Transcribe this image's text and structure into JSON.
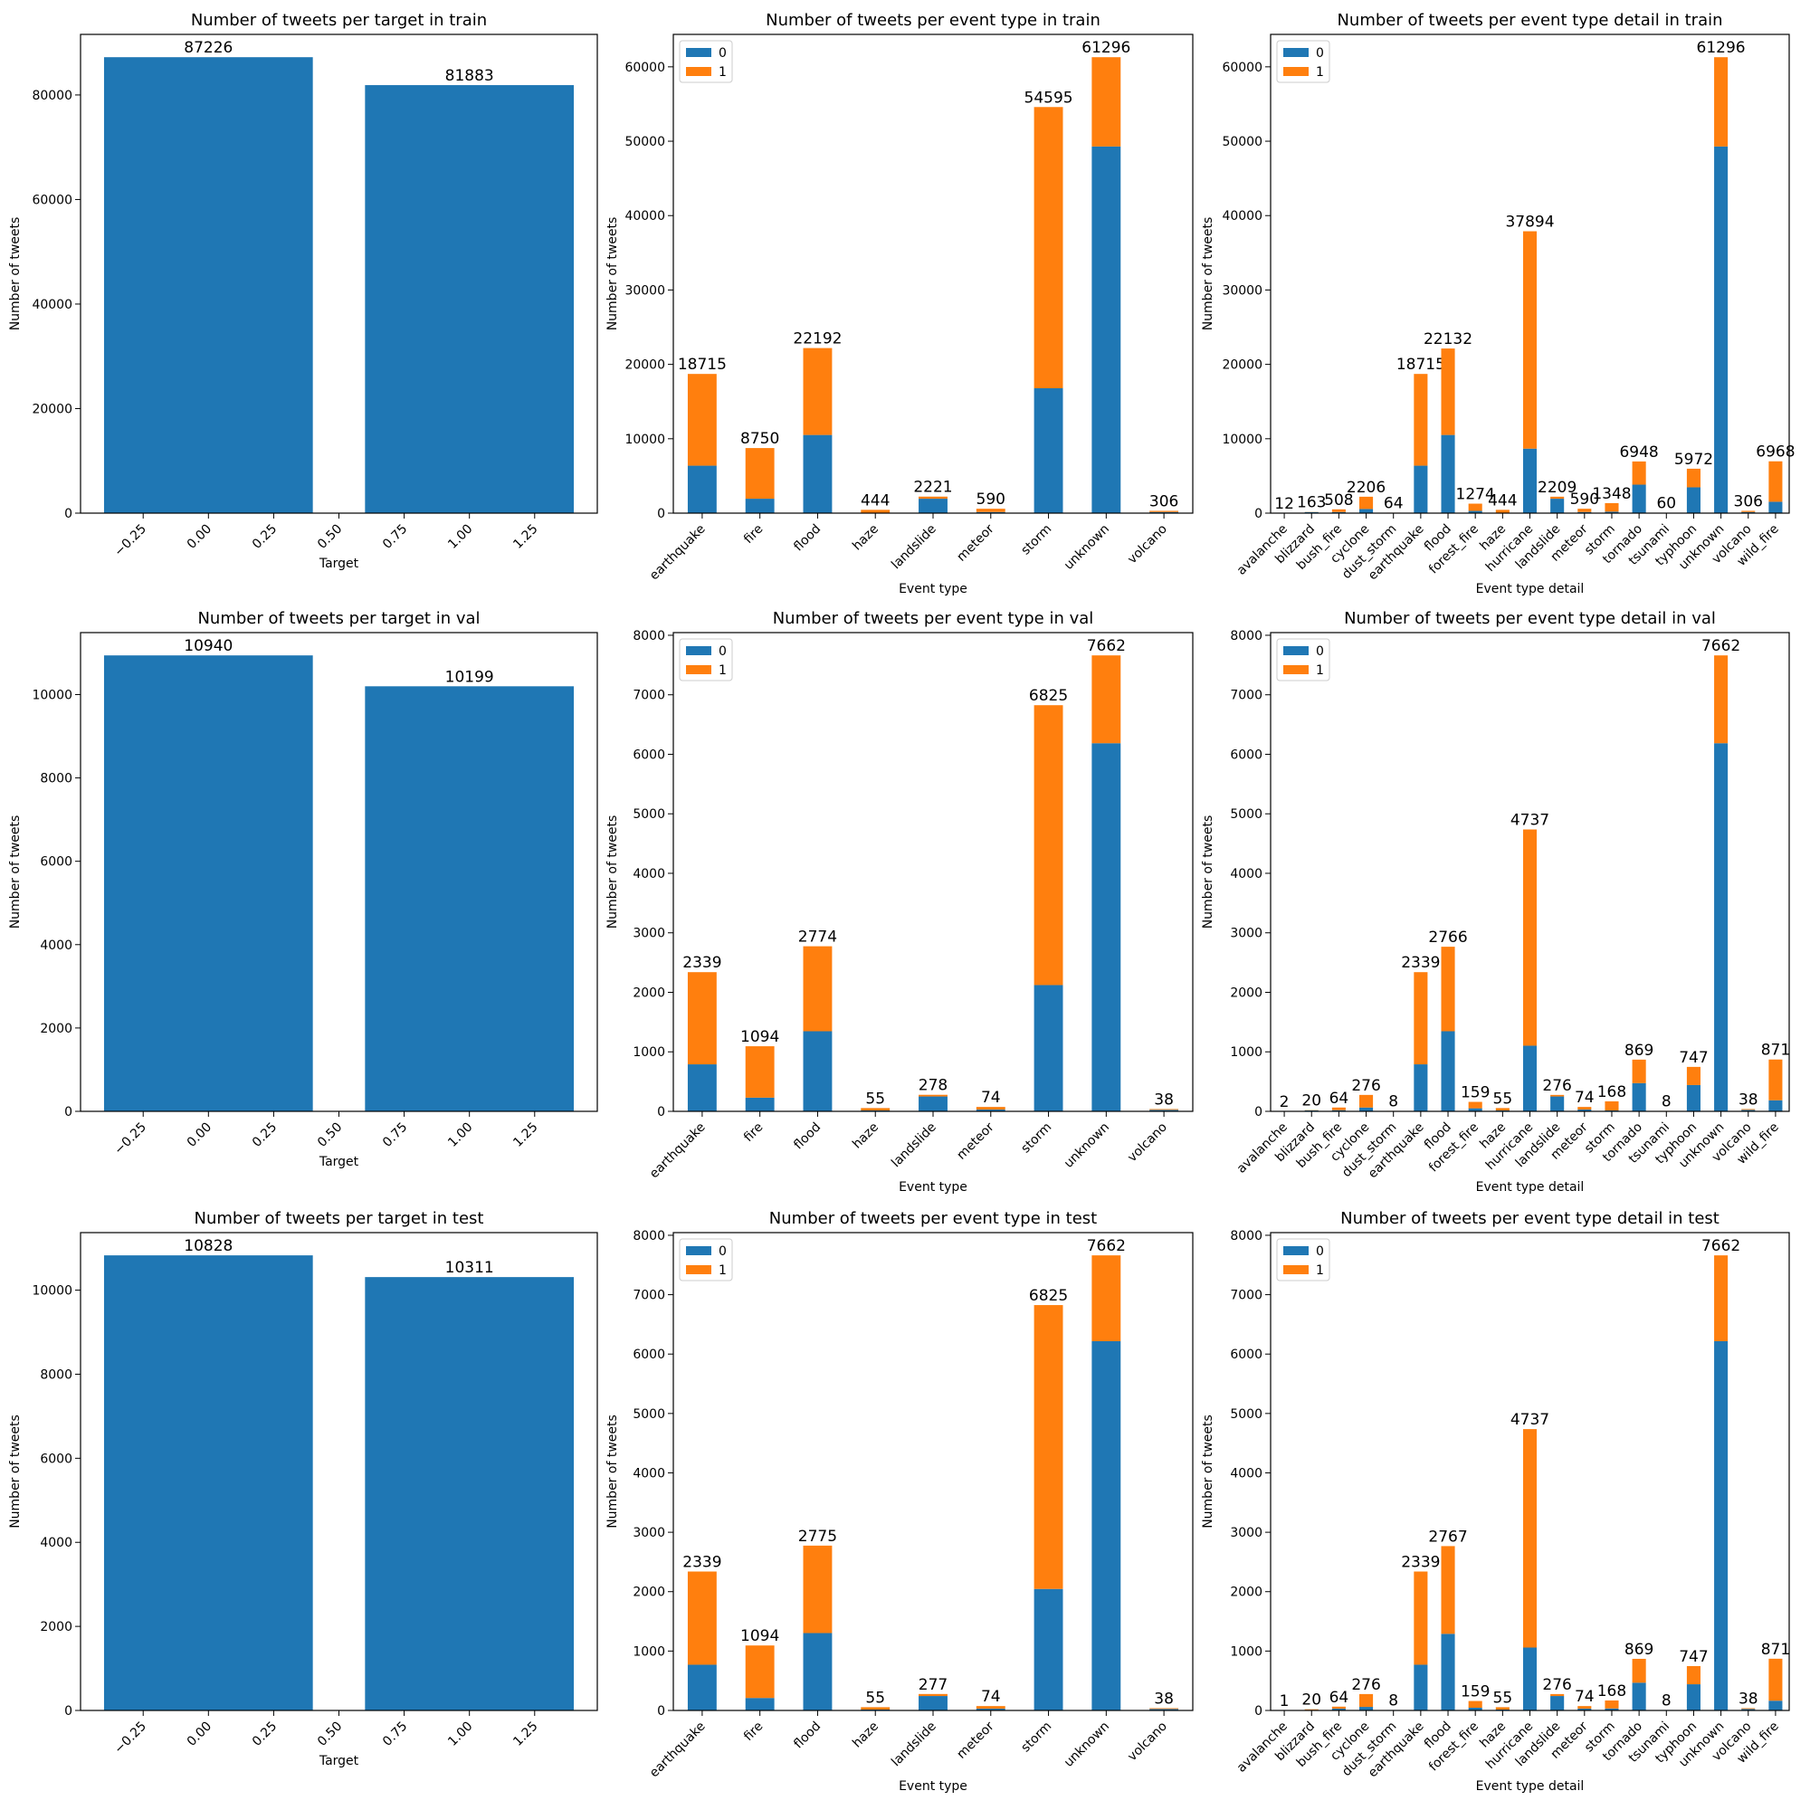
{
  "colors": {
    "class_0": "#1f77b4",
    "class_1": "#ff7f0e",
    "single": "#1f77b4"
  },
  "chart_data": [
    {
      "type": "bar",
      "title": "Number of tweets per target in train",
      "xlabel": "Target",
      "ylabel": "Number of tweets",
      "x": [
        0,
        1
      ],
      "values": [
        87226,
        81883
      ],
      "bar_labels": [
        "87226",
        "81883"
      ],
      "xlim": [
        -0.49,
        1.49
      ],
      "ylim": [
        0,
        91587
      ],
      "xticks": [
        -0.25,
        0,
        0.25,
        0.5,
        0.75,
        1,
        1.25
      ],
      "xtick_labels": [
        "−0.25",
        "0.00",
        "0.25",
        "0.50",
        "0.75",
        "1.00",
        "1.25"
      ],
      "yticks": [
        0,
        20000,
        40000,
        60000,
        80000
      ],
      "ytick_labels": [
        "0",
        "20000",
        "40000",
        "60000",
        "80000"
      ]
    },
    {
      "type": "bar",
      "stacked": true,
      "title": "Number of tweets per event type in train",
      "xlabel": "Event type",
      "ylabel": "Number of tweets",
      "categories": [
        "earthquake",
        "fire",
        "flood",
        "haze",
        "landslide",
        "meteor",
        "storm",
        "unknown",
        "volcano"
      ],
      "series": [
        {
          "name": "0",
          "values": [
            6380,
            1940,
            10510,
            50,
            1940,
            150,
            16790,
            49290,
            150
          ]
        },
        {
          "name": "1",
          "values": [
            12335,
            6810,
            11682,
            394,
            281,
            440,
            37805,
            12006,
            156
          ]
        }
      ],
      "bar_labels": [
        "18715",
        "8750",
        "22192",
        "444",
        "2221",
        "590",
        "54595",
        "61296",
        "306"
      ],
      "ylim": [
        0,
        64361
      ],
      "yticks": [
        0,
        10000,
        20000,
        30000,
        40000,
        50000,
        60000
      ],
      "ytick_labels": [
        "0",
        "10000",
        "20000",
        "30000",
        "40000",
        "50000",
        "60000"
      ],
      "legend": {
        "placement": "top-left",
        "entries": [
          "0",
          "1"
        ]
      }
    },
    {
      "type": "bar",
      "stacked": true,
      "title": "Number of tweets per event type detail in train",
      "xlabel": "Event type detail",
      "ylabel": "Number of tweets",
      "categories": [
        "avalanche",
        "blizzard",
        "bush_fire",
        "cyclone",
        "dust_storm",
        "earthquake",
        "flood",
        "forest_fire",
        "haze",
        "hurricane",
        "landslide",
        "meteor",
        "storm",
        "tornado",
        "tsunami",
        "typhoon",
        "unknown",
        "volcano",
        "wild_fire"
      ],
      "series": [
        {
          "name": "0",
          "values": [
            6,
            140,
            150,
            560,
            30,
            6380,
            10510,
            300,
            50,
            8670,
            1940,
            150,
            200,
            3830,
            20,
            3470,
            49290,
            150,
            1530
          ]
        },
        {
          "name": "1",
          "values": [
            6,
            23,
            358,
            1646,
            34,
            12335,
            11622,
            974,
            394,
            29224,
            269,
            440,
            1148,
            3118,
            40,
            2502,
            12006,
            156,
            5438
          ]
        }
      ],
      "bar_labels": [
        "12",
        "163",
        "508",
        "2206",
        "64",
        "18715",
        "22132",
        "1274",
        "444",
        "37894",
        "2209",
        "590",
        "1348",
        "6948",
        "60",
        "5972",
        "61296",
        "306",
        "6968"
      ],
      "ylim": [
        0,
        64361
      ],
      "yticks": [
        0,
        10000,
        20000,
        30000,
        40000,
        50000,
        60000
      ],
      "ytick_labels": [
        "0",
        "10000",
        "20000",
        "30000",
        "40000",
        "50000",
        "60000"
      ],
      "legend": {
        "placement": "top-left",
        "entries": [
          "0",
          "1"
        ]
      }
    },
    {
      "type": "bar",
      "title": "Number of tweets per target in val",
      "xlabel": "Target",
      "ylabel": "Number of tweets",
      "x": [
        0,
        1
      ],
      "values": [
        10940,
        10199
      ],
      "bar_labels": [
        "10940",
        "10199"
      ],
      "xlim": [
        -0.49,
        1.49
      ],
      "ylim": [
        0,
        11487
      ],
      "xticks": [
        -0.25,
        0,
        0.25,
        0.5,
        0.75,
        1,
        1.25
      ],
      "xtick_labels": [
        "−0.25",
        "0.00",
        "0.25",
        "0.50",
        "0.75",
        "1.00",
        "1.25"
      ],
      "yticks": [
        0,
        2000,
        4000,
        6000,
        8000,
        10000
      ],
      "ytick_labels": [
        "0",
        "2000",
        "4000",
        "6000",
        "8000",
        "10000"
      ]
    },
    {
      "type": "bar",
      "stacked": true,
      "title": "Number of tweets per event type in val",
      "xlabel": "Event type",
      "ylabel": "Number of tweets",
      "categories": [
        "earthquake",
        "fire",
        "flood",
        "haze",
        "landslide",
        "meteor",
        "storm",
        "unknown",
        "volcano"
      ],
      "series": [
        {
          "name": "0",
          "values": [
            790,
            230,
            1346,
            15,
            250,
            30,
            2122,
            6186,
            25
          ]
        },
        {
          "name": "1",
          "values": [
            1549,
            864,
            1428,
            40,
            28,
            44,
            4703,
            1476,
            13
          ]
        }
      ],
      "bar_labels": [
        "2339",
        "1094",
        "2774",
        "55",
        "278",
        "74",
        "6825",
        "7662",
        "38"
      ],
      "ylim": [
        0,
        8045
      ],
      "yticks": [
        0,
        1000,
        2000,
        3000,
        4000,
        5000,
        6000,
        7000,
        8000
      ],
      "ytick_labels": [
        "0",
        "1000",
        "2000",
        "3000",
        "4000",
        "5000",
        "6000",
        "7000",
        "8000"
      ],
      "legend": {
        "placement": "top-left",
        "entries": [
          "0",
          "1"
        ]
      }
    },
    {
      "type": "bar",
      "stacked": true,
      "title": "Number of tweets per event type detail in val",
      "xlabel": "Event type detail",
      "ylabel": "Number of tweets",
      "categories": [
        "avalanche",
        "blizzard",
        "bush_fire",
        "cyclone",
        "dust_storm",
        "earthquake",
        "flood",
        "forest_fire",
        "haze",
        "hurricane",
        "landslide",
        "meteor",
        "storm",
        "tornado",
        "tsunami",
        "typhoon",
        "unknown",
        "volcano",
        "wild_fire"
      ],
      "series": [
        {
          "name": "0",
          "values": [
            1,
            15,
            20,
            64,
            2,
            790,
            1346,
            51,
            15,
            1103,
            250,
            30,
            15,
            474,
            2,
            442,
            6186,
            25,
            186
          ]
        },
        {
          "name": "1",
          "values": [
            1,
            5,
            44,
            212,
            6,
            1549,
            1420,
            108,
            40,
            3634,
            26,
            44,
            153,
            395,
            6,
            305,
            1476,
            13,
            685
          ]
        }
      ],
      "bar_labels": [
        "2",
        "20",
        "64",
        "276",
        "8",
        "2339",
        "2766",
        "159",
        "55",
        "4737",
        "276",
        "74",
        "168",
        "869",
        "8",
        "747",
        "7662",
        "38",
        "871"
      ],
      "ylim": [
        0,
        8045
      ],
      "yticks": [
        0,
        1000,
        2000,
        3000,
        4000,
        5000,
        6000,
        7000,
        8000
      ],
      "ytick_labels": [
        "0",
        "1000",
        "2000",
        "3000",
        "4000",
        "5000",
        "6000",
        "7000",
        "8000"
      ],
      "legend": {
        "placement": "top-left",
        "entries": [
          "0",
          "1"
        ]
      }
    },
    {
      "type": "bar",
      "title": "Number of tweets per target in test",
      "xlabel": "Target",
      "ylabel": "Number of tweets",
      "x": [
        0,
        1
      ],
      "values": [
        10828,
        10311
      ],
      "bar_labels": [
        "10828",
        "10311"
      ],
      "xlim": [
        -0.49,
        1.49
      ],
      "ylim": [
        0,
        11369
      ],
      "xticks": [
        -0.25,
        0,
        0.25,
        0.5,
        0.75,
        1,
        1.25
      ],
      "xtick_labels": [
        "−0.25",
        "0.00",
        "0.25",
        "0.50",
        "0.75",
        "1.00",
        "1.25"
      ],
      "yticks": [
        0,
        2000,
        4000,
        6000,
        8000,
        10000
      ],
      "ytick_labels": [
        "0",
        "2000",
        "4000",
        "6000",
        "8000",
        "10000"
      ]
    },
    {
      "type": "bar",
      "stacked": true,
      "title": "Number of tweets per event type in test",
      "xlabel": "Event type",
      "ylabel": "Number of tweets",
      "categories": [
        "earthquake",
        "fire",
        "flood",
        "haze",
        "landslide",
        "meteor",
        "storm",
        "unknown",
        "volcano"
      ],
      "series": [
        {
          "name": "0",
          "values": [
            770,
            210,
            1303,
            15,
            243,
            30,
            2046,
            6217,
            25
          ]
        },
        {
          "name": "1",
          "values": [
            1569,
            884,
            1472,
            40,
            34,
            44,
            4779,
            1445,
            13
          ]
        }
      ],
      "bar_labels": [
        "2339",
        "1094",
        "2775",
        "55",
        "277",
        "74",
        "6825",
        "7662",
        "38"
      ],
      "ylim": [
        0,
        8045
      ],
      "yticks": [
        0,
        1000,
        2000,
        3000,
        4000,
        5000,
        6000,
        7000,
        8000
      ],
      "ytick_labels": [
        "0",
        "1000",
        "2000",
        "3000",
        "4000",
        "5000",
        "6000",
        "7000",
        "8000"
      ],
      "legend": {
        "placement": "top-left",
        "entries": [
          "0",
          "1"
        ]
      }
    },
    {
      "type": "bar",
      "stacked": true,
      "title": "Number of tweets per event type detail in test",
      "xlabel": "Event type detail",
      "ylabel": "Number of tweets",
      "categories": [
        "avalanche",
        "blizzard",
        "bush_fire",
        "cyclone",
        "dust_storm",
        "earthquake",
        "flood",
        "forest_fire",
        "haze",
        "hurricane",
        "landslide",
        "meteor",
        "storm",
        "tornado",
        "tsunami",
        "typhoon",
        "unknown",
        "volcano",
        "wild_fire"
      ],
      "series": [
        {
          "name": "0",
          "values": [
            0,
            10,
            30,
            60,
            8,
            770,
            1290,
            46,
            15,
            1059,
            243,
            30,
            33,
            467,
            8,
            441,
            6217,
            25,
            164
          ]
        },
        {
          "name": "1",
          "values": [
            1,
            10,
            34,
            216,
            0,
            1569,
            1477,
            113,
            40,
            3678,
            33,
            44,
            135,
            402,
            0,
            306,
            1445,
            13,
            707
          ]
        }
      ],
      "bar_labels": [
        "1",
        "20",
        "64",
        "276",
        "8",
        "2339",
        "2767",
        "159",
        "55",
        "4737",
        "276",
        "74",
        "168",
        "869",
        "8",
        "747",
        "7662",
        "38",
        "871"
      ],
      "ylim": [
        0,
        8045
      ],
      "yticks": [
        0,
        1000,
        2000,
        3000,
        4000,
        5000,
        6000,
        7000,
        8000
      ],
      "ytick_labels": [
        "0",
        "1000",
        "2000",
        "3000",
        "4000",
        "5000",
        "6000",
        "7000",
        "8000"
      ],
      "legend": {
        "placement": "top-left",
        "entries": [
          "0",
          "1"
        ]
      }
    }
  ]
}
